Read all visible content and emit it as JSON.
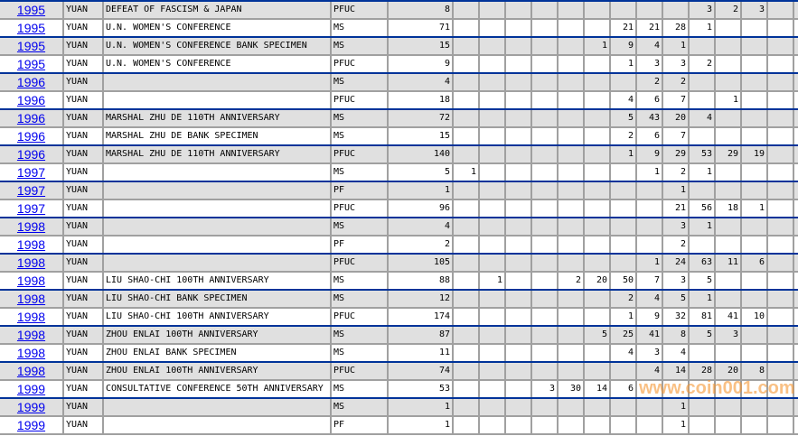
{
  "watermark": "www.coin001.com",
  "colors": {
    "link": "#0000ee",
    "row_alt": "#e0e0e0",
    "group_separator": "#003399",
    "grid": "#a0a0a0",
    "watermark": "#f59632"
  },
  "rows": [
    {
      "year": "1995",
      "unit": "YUAN",
      "desc": "DEFEAT OF FASCISM & JAPAN",
      "grade": "PFUC",
      "total": "8",
      "counts": [
        "",
        "",
        "",
        "",
        "",
        "",
        "",
        "",
        "",
        "3",
        "2",
        "3",
        ""
      ]
    },
    {
      "year": "1995",
      "unit": "YUAN",
      "desc": "U.N. WOMEN'S CONFERENCE",
      "grade": "MS",
      "total": "71",
      "counts": [
        "",
        "",
        "",
        "",
        "",
        "",
        "21",
        "21",
        "28",
        "1",
        "",
        "",
        ""
      ]
    },
    {
      "year": "1995",
      "unit": "YUAN",
      "desc": "U.N. WOMEN'S CONFERENCE BANK SPECIMEN",
      "grade": "MS",
      "total": "15",
      "counts": [
        "",
        "",
        "",
        "",
        "",
        "1",
        "9",
        "4",
        "1",
        "",
        "",
        "",
        ""
      ]
    },
    {
      "year": "1995",
      "unit": "YUAN",
      "desc": "U.N. WOMEN'S CONFERENCE",
      "grade": "PFUC",
      "total": "9",
      "counts": [
        "",
        "",
        "",
        "",
        "",
        "",
        "1",
        "3",
        "3",
        "2",
        "",
        "",
        ""
      ]
    },
    {
      "year": "1996",
      "unit": "YUAN",
      "desc": "",
      "grade": "MS",
      "total": "4",
      "counts": [
        "",
        "",
        "",
        "",
        "",
        "",
        "",
        "2",
        "2",
        "",
        "",
        "",
        ""
      ]
    },
    {
      "year": "1996",
      "unit": "YUAN",
      "desc": "",
      "grade": "PFUC",
      "total": "18",
      "counts": [
        "",
        "",
        "",
        "",
        "",
        "",
        "4",
        "6",
        "7",
        "",
        "1",
        "",
        ""
      ]
    },
    {
      "year": "1996",
      "unit": "YUAN",
      "desc": "MARSHAL ZHU DE 110TH ANNIVERSARY",
      "grade": "MS",
      "total": "72",
      "counts": [
        "",
        "",
        "",
        "",
        "",
        "",
        "5",
        "43",
        "20",
        "4",
        "",
        "",
        ""
      ]
    },
    {
      "year": "1996",
      "unit": "YUAN",
      "desc": "MARSHAL ZHU DE BANK SPECIMEN",
      "grade": "MS",
      "total": "15",
      "counts": [
        "",
        "",
        "",
        "",
        "",
        "",
        "2",
        "6",
        "7",
        "",
        "",
        "",
        ""
      ]
    },
    {
      "year": "1996",
      "unit": "YUAN",
      "desc": "MARSHAL ZHU DE 110TH ANNIVERSARY",
      "grade": "PFUC",
      "total": "140",
      "counts": [
        "",
        "",
        "",
        "",
        "",
        "",
        "1",
        "9",
        "29",
        "53",
        "29",
        "19",
        ""
      ]
    },
    {
      "year": "1997",
      "unit": "YUAN",
      "desc": "",
      "grade": "MS",
      "total": "5",
      "counts": [
        "1",
        "",
        "",
        "",
        "",
        "",
        "",
        "1",
        "2",
        "1",
        "",
        "",
        ""
      ]
    },
    {
      "year": "1997",
      "unit": "YUAN",
      "desc": "",
      "grade": "PF",
      "total": "1",
      "counts": [
        "",
        "",
        "",
        "",
        "",
        "",
        "",
        "",
        "1",
        "",
        "",
        "",
        ""
      ]
    },
    {
      "year": "1997",
      "unit": "YUAN",
      "desc": "",
      "grade": "PFUC",
      "total": "96",
      "counts": [
        "",
        "",
        "",
        "",
        "",
        "",
        "",
        "",
        "21",
        "56",
        "18",
        "1",
        ""
      ]
    },
    {
      "year": "1998",
      "unit": "YUAN",
      "desc": "",
      "grade": "MS",
      "total": "4",
      "counts": [
        "",
        "",
        "",
        "",
        "",
        "",
        "",
        "",
        "3",
        "1",
        "",
        "",
        ""
      ]
    },
    {
      "year": "1998",
      "unit": "YUAN",
      "desc": "",
      "grade": "PF",
      "total": "2",
      "counts": [
        "",
        "",
        "",
        "",
        "",
        "",
        "",
        "",
        "2",
        "",
        "",
        "",
        ""
      ]
    },
    {
      "year": "1998",
      "unit": "YUAN",
      "desc": "",
      "grade": "PFUC",
      "total": "105",
      "counts": [
        "",
        "",
        "",
        "",
        "",
        "",
        "",
        "1",
        "24",
        "63",
        "11",
        "6",
        ""
      ]
    },
    {
      "year": "1998",
      "unit": "YUAN",
      "desc": "LIU SHAO-CHI 100TH ANNIVERSARY",
      "grade": "MS",
      "total": "88",
      "counts": [
        "",
        "1",
        "",
        "",
        "2",
        "20",
        "50",
        "7",
        "3",
        "5",
        "",
        "",
        ""
      ]
    },
    {
      "year": "1998",
      "unit": "YUAN",
      "desc": "LIU SHAO-CHI BANK SPECIMEN",
      "grade": "MS",
      "total": "12",
      "counts": [
        "",
        "",
        "",
        "",
        "",
        "",
        "2",
        "4",
        "5",
        "1",
        "",
        "",
        ""
      ]
    },
    {
      "year": "1998",
      "unit": "YUAN",
      "desc": "LIU SHAO-CHI 100TH ANNIVERSARY",
      "grade": "PFUC",
      "total": "174",
      "counts": [
        "",
        "",
        "",
        "",
        "",
        "",
        "1",
        "9",
        "32",
        "81",
        "41",
        "10",
        ""
      ]
    },
    {
      "year": "1998",
      "unit": "YUAN",
      "desc": "ZHOU ENLAI 100TH ANNIVERSARY",
      "grade": "MS",
      "total": "87",
      "counts": [
        "",
        "",
        "",
        "",
        "",
        "5",
        "25",
        "41",
        "8",
        "5",
        "3",
        "",
        ""
      ]
    },
    {
      "year": "1998",
      "unit": "YUAN",
      "desc": "ZHOU ENLAI BANK SPECIMEN",
      "grade": "MS",
      "total": "11",
      "counts": [
        "",
        "",
        "",
        "",
        "",
        "",
        "4",
        "3",
        "4",
        "",
        "",
        "",
        ""
      ]
    },
    {
      "year": "1998",
      "unit": "YUAN",
      "desc": "ZHOU ENLAI 100TH ANNIVERSARY",
      "grade": "PFUC",
      "total": "74",
      "counts": [
        "",
        "",
        "",
        "",
        "",
        "",
        "",
        "4",
        "14",
        "28",
        "20",
        "8",
        ""
      ]
    },
    {
      "year": "1999",
      "unit": "YUAN",
      "desc": "CONSULTATIVE CONFERENCE 50TH ANNIVERSARY",
      "grade": "MS",
      "total": "53",
      "counts": [
        "",
        "",
        "",
        "3",
        "30",
        "14",
        "6",
        "",
        "",
        "",
        "",
        "",
        ""
      ]
    },
    {
      "year": "1999",
      "unit": "YUAN",
      "desc": "",
      "grade": "MS",
      "total": "1",
      "counts": [
        "",
        "",
        "",
        "",
        "",
        "",
        "",
        "",
        "1",
        "",
        "",
        "",
        ""
      ]
    },
    {
      "year": "1999",
      "unit": "YUAN",
      "desc": "",
      "grade": "PF",
      "total": "1",
      "counts": [
        "",
        "",
        "",
        "",
        "",
        "",
        "",
        "",
        "1",
        "",
        "",
        "",
        ""
      ]
    }
  ]
}
